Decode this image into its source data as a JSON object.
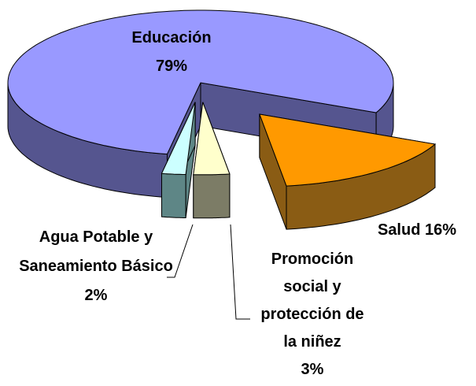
{
  "chart_data": {
    "type": "pie3d",
    "categories": [
      "Educación",
      "Salud",
      "Promoción social y protección de la niñez",
      "Agua Potable y Saneamiento Básico"
    ],
    "values": [
      79,
      16,
      3,
      2
    ],
    "value_labels": [
      "79%",
      "16%",
      "3%",
      "2%"
    ],
    "colors": [
      "#9999ff",
      "#ff9900",
      "#ffffcc",
      "#ccffff"
    ],
    "side_colors": [
      "#55558f",
      "#8a5c14",
      "#7c7c66",
      "#5e8686"
    ]
  }
}
